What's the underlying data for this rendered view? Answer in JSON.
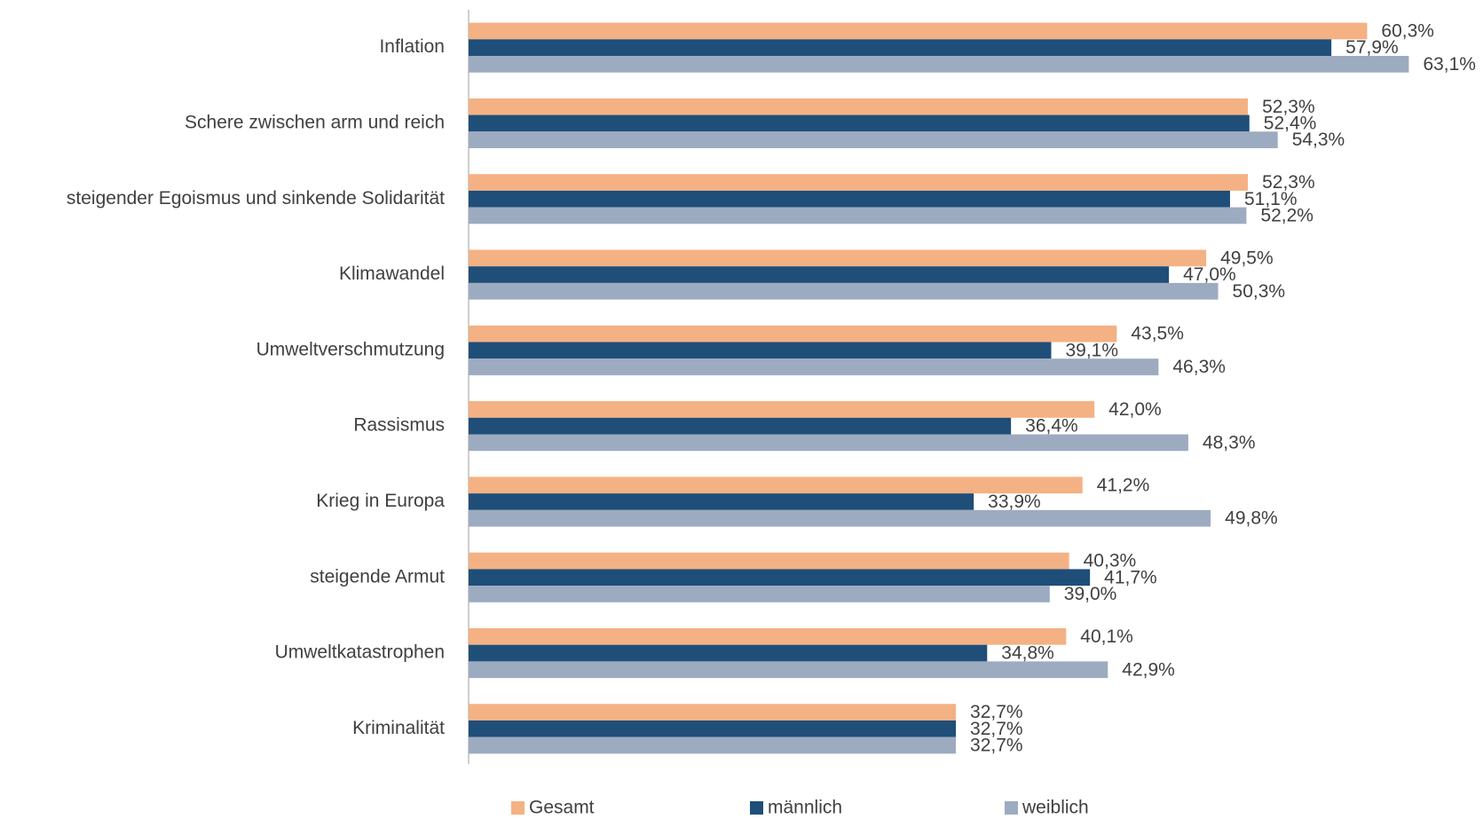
{
  "chart_data": {
    "type": "bar",
    "orientation": "horizontal",
    "categories": [
      "Inflation",
      "Schere zwischen arm und reich",
      "steigender Egoismus und sinkende Solidarität",
      "Klimawandel",
      "Umweltverschmutzung",
      "Rassismus",
      "Krieg in Europa",
      "steigende Armut",
      "Umweltkatastrophen",
      "Kriminalität"
    ],
    "series": [
      {
        "name": "Gesamt",
        "color": "#f4b183",
        "values": [
          60.3,
          52.3,
          52.3,
          49.5,
          43.5,
          42.0,
          41.2,
          40.3,
          40.1,
          32.7
        ],
        "value_labels": [
          "60,3%",
          "52,3%",
          "52,3%",
          "49,5%",
          "43,5%",
          "42,0%",
          "41,2%",
          "40,3%",
          "40,1%",
          "32,7%"
        ]
      },
      {
        "name": "männlich",
        "color": "#1f4e79",
        "values": [
          57.9,
          52.4,
          51.1,
          47.0,
          39.1,
          36.4,
          33.9,
          41.7,
          34.8,
          32.7
        ],
        "value_labels": [
          "57,9%",
          "52,4%",
          "51,1%",
          "47,0%",
          "39,1%",
          "36,4%",
          "33,9%",
          "41,7%",
          "34,8%",
          "32,7%"
        ]
      },
      {
        "name": "weiblich",
        "color": "#9dabc1",
        "values": [
          63.1,
          54.3,
          52.2,
          50.3,
          46.3,
          48.3,
          49.8,
          39.0,
          42.9,
          32.7
        ],
        "value_labels": [
          "63,1%",
          "54,3%",
          "52,2%",
          "50,3%",
          "46,3%",
          "48,3%",
          "49,8%",
          "39,0%",
          "42,9%",
          "32,7%"
        ]
      }
    ],
    "legend": "bottom"
  }
}
